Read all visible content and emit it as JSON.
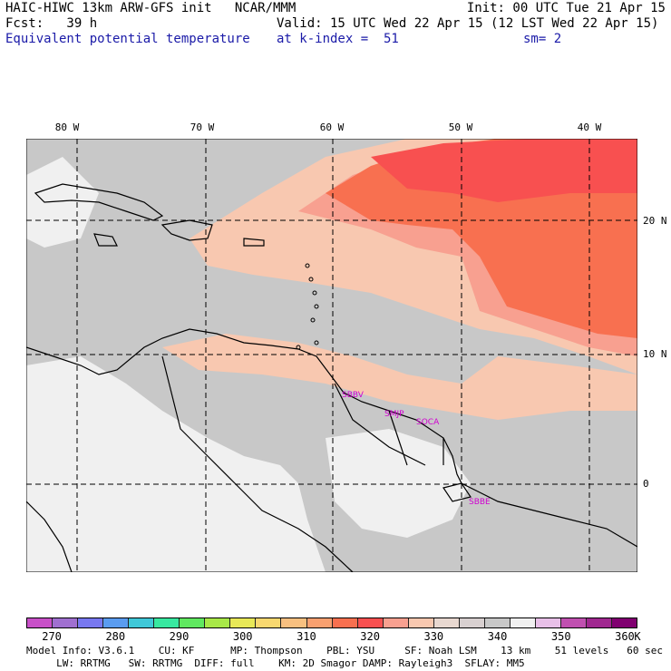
{
  "header": {
    "line1_left": "HAIC-HIWC 13km ARW-GFS init   NCAR/MMM",
    "line1_right": "Init: 00 UTC Tue 21 Apr 15",
    "line2_left": "Fcst:   39 h",
    "line2_right": "Valid: 15 UTC Wed 22 Apr 15 (12 LST Wed 22 Apr 15)",
    "line3_left": "Equivalent potential temperature",
    "line3_mid": "at k-index =  51",
    "line3_right": "sm= 2"
  },
  "map": {
    "lon_labels": [
      "80 W",
      "70 W",
      "60 W",
      "50 W",
      "40 W"
    ],
    "lat_labels": [
      "20 N",
      "10 N",
      "0"
    ],
    "stations": [
      "SBBV",
      "SMJP",
      "SOCA",
      "SBBE"
    ]
  },
  "colorbar": {
    "unit": "K",
    "ticks": [
      "270",
      "280",
      "290",
      "300",
      "310",
      "320",
      "330",
      "340",
      "350",
      "360"
    ],
    "colors": [
      "#c850c8",
      "#a070d0",
      "#7878f0",
      "#5a9cf0",
      "#40c8d8",
      "#38e8a0",
      "#60e860",
      "#a8e848",
      "#e8e858",
      "#f8d870",
      "#f8c080",
      "#f8a070",
      "#f87050",
      "#f85050",
      "#f8a090",
      "#f8c8b0",
      "#e8d8d0",
      "#d8d0d0",
      "#c8c8c8",
      "#f0f0f0",
      "#e8c0e8",
      "#c050b0",
      "#a02890",
      "#800070"
    ]
  },
  "footer": {
    "line1": "Model Info: V3.6.1    CU: KF      MP: Thompson    PBL: YSU     SF: Noah LSM    13 km    51 levels   60 sec",
    "line2": "     LW: RRTMG   SW: RRTMG  DIFF: full    KM: 2D Smagor DAMP: Rayleigh3  SFLAY: MM5"
  }
}
